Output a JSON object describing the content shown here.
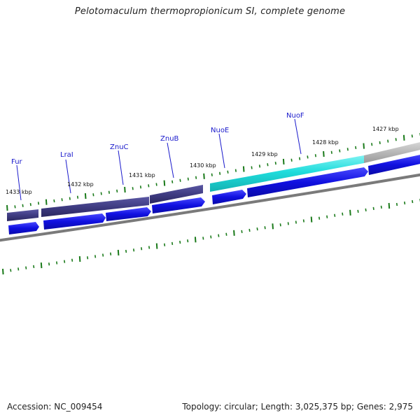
{
  "title": "Pelotomaculum thermopropionicum SI, complete genome",
  "footer": {
    "accession": "Accession: NC_009454",
    "summary": "Topology: circular; Length: 3,025,375 bp; Genes: 2,975"
  },
  "genes": [
    {
      "name": "Fur"
    },
    {
      "name": "LraI"
    },
    {
      "name": "ZnuC"
    },
    {
      "name": "ZnuB"
    },
    {
      "name": "NuoE"
    },
    {
      "name": "NuoF"
    }
  ],
  "kbp_labels": [
    "1433 kbp",
    "1432 kbp",
    "1431 kbp",
    "1430 kbp",
    "1429 kbp",
    "1428 kbp",
    "1427 kbp"
  ],
  "colors": {
    "operon_dark": "#3f3c82",
    "operon_cyan": "#1fdcdc",
    "operon_gray": "#b8b8b8",
    "cds_blue": "#1010e0",
    "backbone": "#7a7a7a",
    "tick_green": "#1a7a1a",
    "gene_label": "#1a1acc"
  }
}
